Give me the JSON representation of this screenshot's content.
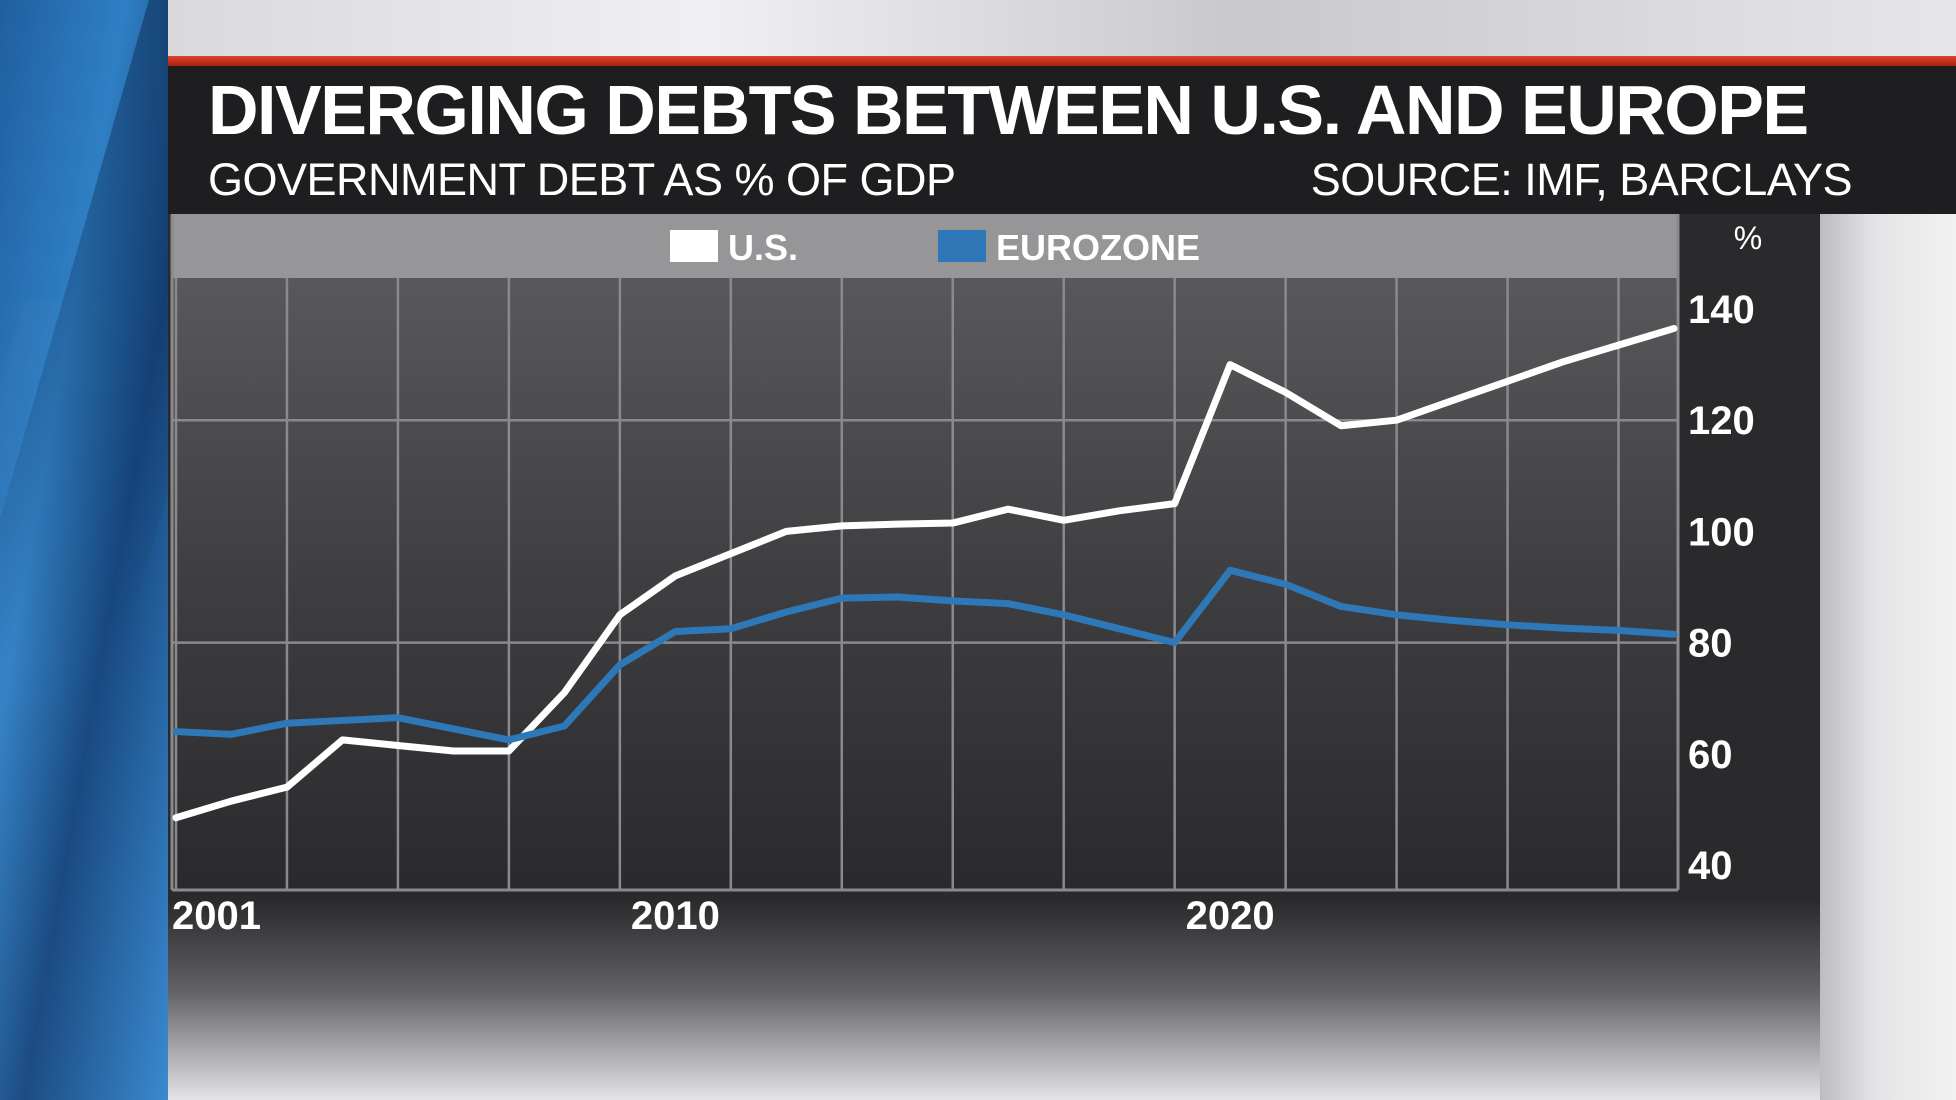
{
  "header": {
    "title": "DIVERGING DEBTS BETWEEN U.S. AND EUROPE",
    "subtitle": "GOVERNMENT DEBT AS % OF GDP",
    "source": "SOURCE: IMF, BARCLAYS"
  },
  "colors": {
    "us": "#ffffff",
    "eurozone": "#2e78b8",
    "accent_red": "#c9321b"
  },
  "chart_data": {
    "type": "line",
    "title": "DIVERGING DEBTS BETWEEN U.S. AND EUROPE",
    "subtitle": "GOVERNMENT DEBT AS % OF GDP",
    "ylabel": "%",
    "xlim": [
      2001,
      2028
    ],
    "ylim": [
      40,
      140
    ],
    "y_ticks": [
      40,
      60,
      80,
      100,
      120,
      140
    ],
    "x_ticks": [
      {
        "value": 2001,
        "label": "2001"
      },
      {
        "value": 2010,
        "label": "2010"
      },
      {
        "value": 2020,
        "label": "2020"
      }
    ],
    "x": [
      2001,
      2002,
      2003,
      2004,
      2005,
      2006,
      2007,
      2008,
      2009,
      2010,
      2011,
      2012,
      2013,
      2014,
      2015,
      2016,
      2017,
      2018,
      2019,
      2020,
      2021,
      2022,
      2023,
      2024,
      2025,
      2026,
      2027,
      2028
    ],
    "series": [
      {
        "name": "U.S.",
        "color": "#ffffff",
        "values": [
          48.5,
          51.5,
          54,
          62.5,
          61.5,
          60.5,
          60.5,
          71,
          85,
          92,
          96,
          100,
          101,
          101.3,
          101.5,
          104,
          102,
          103.7,
          105,
          130,
          125,
          119,
          120,
          123.5,
          127,
          130.5,
          133.5,
          136.5
        ]
      },
      {
        "name": "EUROZONE",
        "color": "#2e78b8",
        "values": [
          64,
          63.5,
          65.5,
          66,
          66.5,
          64.5,
          62.5,
          65,
          76,
          82,
          82.5,
          85.5,
          88,
          88.2,
          87.5,
          87,
          85,
          82.5,
          80,
          93,
          90.5,
          86.5,
          85,
          84,
          83.2,
          82.6,
          82.2,
          81.5
        ]
      }
    ],
    "legend": {
      "position": "top-center",
      "entries": [
        "U.S.",
        "EUROZONE"
      ]
    },
    "grid": true
  }
}
